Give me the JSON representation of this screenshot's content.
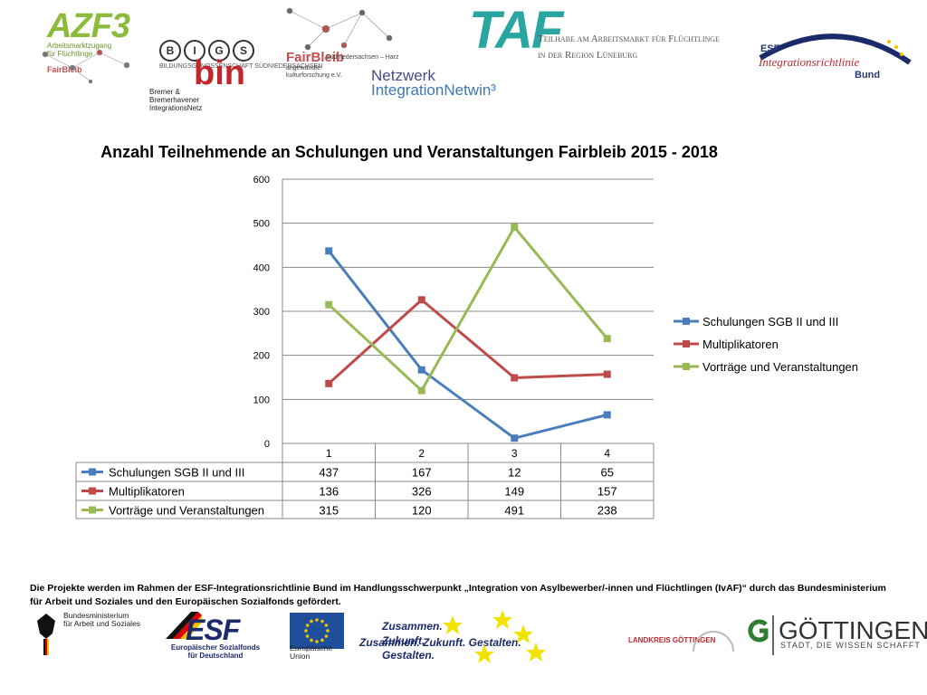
{
  "logos": {
    "azf3": "AZF3",
    "azf3_sub": "Arbeitsmarktzugang für Flüchtlinge",
    "fairbleib_a": "FairBleib",
    "bigs_letters": [
      "B",
      "I",
      "G",
      "S"
    ],
    "bigs_sub": "BILDUNGSGENOSSENSCHAFT SÜDNIEDERSACHSEN",
    "bin": "bin",
    "bin_sub_1": "Bremer &",
    "bin_sub_2": "Bremerhavener",
    "bin_sub_3": "IntegrationsNetz",
    "fairbleib_b": "FairBleib",
    "fairbleib_b_sub_1": "angewandte",
    "fairbleib_b_sub_2": "kulturforschung e.V.",
    "fairbleib_b_right": "Südniedersachsen – Harz",
    "netzwerk_1": "Netzwerk",
    "netzwerk_2": "IntegrationNetwin³",
    "taf": "TAF",
    "taf_sub_1": "Teilhabe am Arbeitsmarkt für Flüchtlinge",
    "taf_sub_2": "in der Region Lüneburg",
    "esf_top": "ESF",
    "esf_ir": "Integrationsrichtlinie",
    "esf_bund": "Bund"
  },
  "title": "Anzahl Teilnehmende an Schulungen und Veranstaltungen Fairbleib 2015 - 2018",
  "chart_data": {
    "type": "line",
    "title": "Anzahl Teilnehmende an Schulungen und Veranstaltungen Fairbleib 2015 - 2018",
    "categories": [
      "1",
      "2",
      "3",
      "4"
    ],
    "ylim": [
      0,
      600
    ],
    "yticks": [
      0,
      100,
      200,
      300,
      400,
      500,
      600
    ],
    "grid": true,
    "legend_position": "right",
    "series": [
      {
        "name": "Schulungen SGB II und III",
        "color": "#4a7ebb",
        "values": [
          437,
          167,
          12,
          65
        ]
      },
      {
        "name": "Multiplikatoren",
        "color": "#be4b48",
        "values": [
          136,
          326,
          149,
          157
        ]
      },
      {
        "name": "Vorträge und Veranstaltungen",
        "color": "#98b954",
        "values": [
          315,
          120,
          491,
          238
        ]
      }
    ],
    "data_table": true
  },
  "footer": {
    "text": "Die Projekte werden im Rahmen der ESF-Integrationsrichtlinie Bund im Handlungsschwerpunkt „Integration von Asylbewerber/-innen und Flüchtlingen (IvAF)“ durch das Bundesministerium für Arbeit und Soziales und den Europäischen Sozialfonds gefördert.",
    "bmas_1": "Bundesministerium",
    "bmas_2": "für Arbeit und Soziales",
    "esf": "ESF",
    "esf_small_1": "Europäischer Sozialfonds",
    "esf_small_2": "für Deutschland",
    "eu_1": "Europäische",
    "eu_2": "Union",
    "zusammen_1": "Zusammen.",
    "zusammen_2": "Zukunft.",
    "zusammen_3": "Gestalten.",
    "zusammen_line": "Zusammen. Zukunft. Gestalten.",
    "landkreis": "LANDKREIS GÖTTINGEN",
    "goettingen": "GÖTTINGEN",
    "goettingen_sub": "STADT, DIE WISSEN SCHAFFT"
  }
}
